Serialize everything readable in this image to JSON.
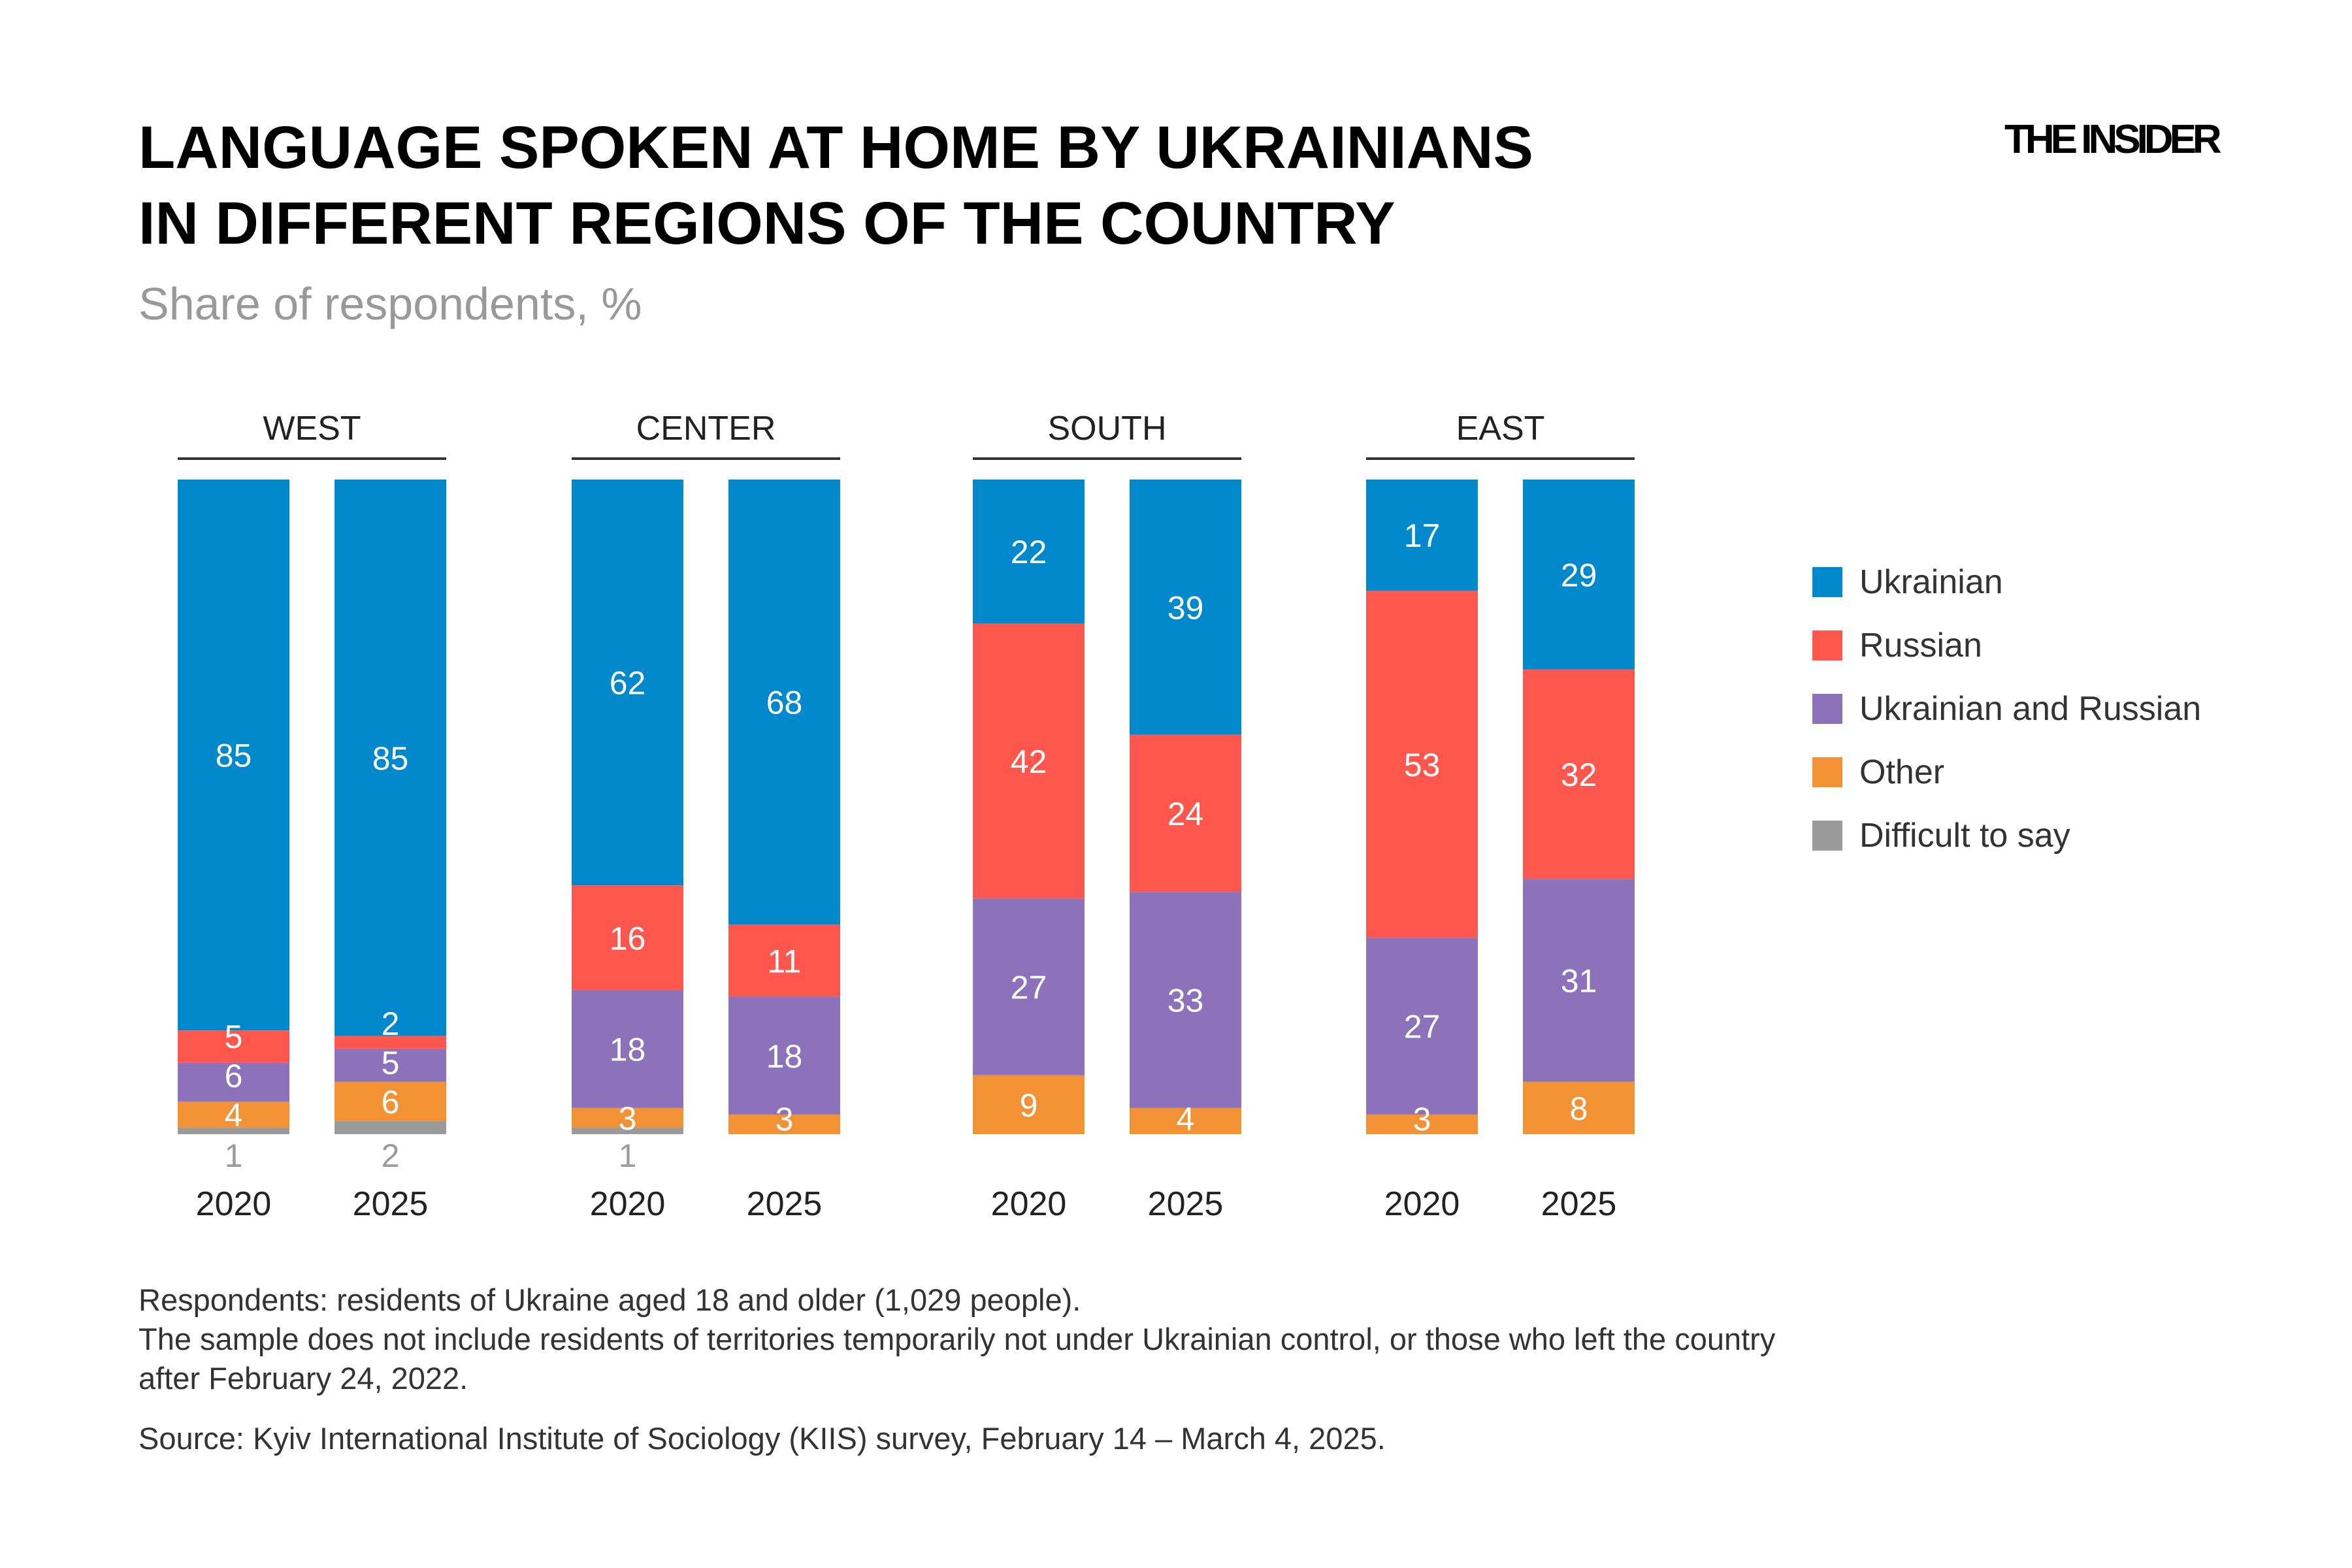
{
  "header": {
    "title_line1": "LANGUAGE SPOKEN AT HOME BY UKRAINIANS",
    "title_line2": "IN DIFFERENT REGIONS OF THE COUNTRY",
    "subtitle": "Share of respondents, %",
    "logo": "THE INSIDER"
  },
  "notes": {
    "line1": "Respondents: residents of Ukraine aged 18 and older (1,029 people).",
    "line2": "The sample does not include residents of territories temporarily not under Ukrainian control, or those who left the country",
    "line3": "after February 24, 2022.",
    "source": "Source: Kyiv International Institute of Sociology (KIIS) survey, February 14 – March 4, 2025."
  },
  "chart_data": {
    "type": "bar",
    "stacked": true,
    "title": "LANGUAGE SPOKEN AT HOME BY UKRAINIANS IN DIFFERENT REGIONS OF THE COUNTRY",
    "subtitle": "Share of respondents, %",
    "legend_placement": "right",
    "grid": false,
    "series_names": [
      "Ukrainian",
      "Russian",
      "Ukrainian and Russian",
      "Other",
      "Difficult to say"
    ],
    "colors": [
      "#0088CC",
      "#FF574D",
      "#8C72BB",
      "#F39234",
      "#9B9B9B"
    ],
    "groups": [
      {
        "region": "WEST",
        "bars": [
          {
            "year": "2020",
            "values": [
              85,
              5,
              6,
              4,
              1
            ]
          },
          {
            "year": "2025",
            "values": [
              85,
              2,
              5,
              6,
              2
            ]
          }
        ]
      },
      {
        "region": "CENTER",
        "bars": [
          {
            "year": "2020",
            "values": [
              62,
              16,
              18,
              3,
              1
            ]
          },
          {
            "year": "2025",
            "values": [
              68,
              11,
              18,
              3,
              0
            ]
          }
        ]
      },
      {
        "region": "SOUTH",
        "bars": [
          {
            "year": "2020",
            "values": [
              22,
              42,
              27,
              9,
              0
            ]
          },
          {
            "year": "2025",
            "values": [
              39,
              24,
              33,
              4,
              0
            ]
          }
        ]
      },
      {
        "region": "EAST",
        "bars": [
          {
            "year": "2020",
            "values": [
              17,
              53,
              27,
              3,
              0
            ]
          },
          {
            "year": "2025",
            "values": [
              29,
              32,
              31,
              8,
              0
            ]
          }
        ]
      }
    ]
  }
}
